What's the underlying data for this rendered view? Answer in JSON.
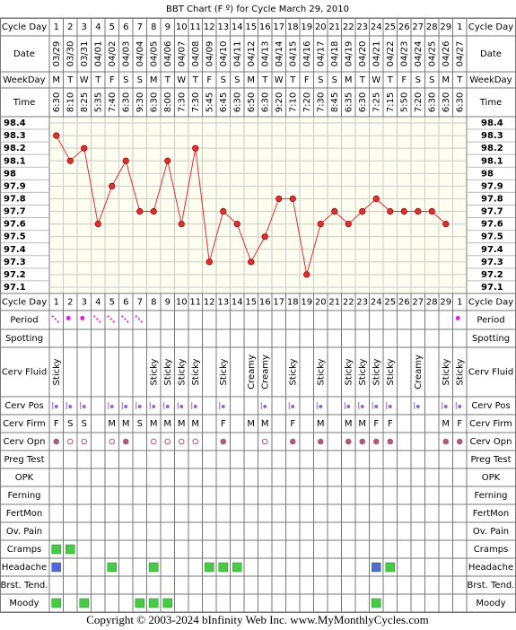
{
  "title": "BBT Chart (F º) for Cycle March 29, 2010",
  "cycle_day_label": "Cycle Day",
  "date_label": "Date",
  "dates": [
    "03/29",
    "03/30",
    "03/31",
    "04/01",
    "04/02",
    "04/03",
    "04/04",
    "04/05",
    "04/06",
    "04/07",
    "04/08",
    "04/09",
    "04/10",
    "04/11",
    "04/12",
    "04/13",
    "04/14",
    "04/15",
    "04/16",
    "04/17",
    "04/18",
    "04/19",
    "04/20",
    "04/21",
    "04/22",
    "04/23",
    "04/24",
    "04/25",
    "04/26",
    "04/27"
  ],
  "weekday_label": "WeekDay",
  "weekdays": [
    "M",
    "T",
    "W",
    "T",
    "F",
    "S",
    "S",
    "M",
    "T",
    "W",
    "T",
    "F",
    "S",
    "S",
    "M",
    "T",
    "W",
    "T",
    "F",
    "S",
    "S",
    "M",
    "T",
    "W",
    "T",
    "F",
    "S",
    "S",
    "M",
    "T"
  ],
  "time_label": "Time",
  "times": [
    "6:30",
    "8:10",
    "8:25",
    "5:35",
    "7:40",
    "6:30",
    "9:30",
    "6:30",
    "8:00",
    "7:30",
    "7:30",
    "5:45",
    "6:45",
    "6:30",
    "6:50",
    "6:30",
    "9:20",
    "7:10",
    "7:20",
    "7:30",
    "8:45",
    "6:35",
    "6:30",
    "7:25",
    "7:15",
    "5:50",
    "7:20",
    "6:30",
    "6:30",
    "6:30"
  ],
  "chart_data": {
    "type": "line",
    "categories": [
      1,
      2,
      3,
      4,
      5,
      6,
      7,
      8,
      9,
      10,
      11,
      12,
      13,
      14,
      15,
      16,
      17,
      18,
      19,
      20,
      21,
      22,
      23,
      24,
      25,
      26,
      27,
      28,
      29,
      1
    ],
    "series": [
      {
        "color": "#e03030",
        "values": [
          98.3,
          98.1,
          98.2,
          97.6,
          97.9,
          98.1,
          97.7,
          97.7,
          98.1,
          97.6,
          98.2,
          97.3,
          97.7,
          97.6,
          97.3,
          97.5,
          97.8,
          97.8,
          97.2,
          97.6,
          97.7,
          97.6,
          97.7,
          97.8,
          97.7,
          97.7,
          97.7,
          97.7,
          97.6,
          null
        ]
      }
    ],
    "ylim": [
      97.05,
      98.45
    ],
    "yticks": [
      98.4,
      98.3,
      98.2,
      98.1,
      98.0,
      97.9,
      97.8,
      97.7,
      97.6,
      97.5,
      97.4,
      97.3,
      97.2,
      97.1
    ],
    "grid": true
  },
  "observations": [
    {
      "label": "Period",
      "kind": "period",
      "color": "#e020e0",
      "values": [
        1,
        2,
        2,
        1,
        1,
        1,
        1,
        null,
        null,
        null,
        null,
        null,
        null,
        null,
        null,
        null,
        null,
        null,
        null,
        null,
        null,
        null,
        null,
        null,
        null,
        null,
        null,
        null,
        null,
        2
      ]
    },
    {
      "label": "Spotting"
    },
    {
      "label": "Cerv Fluid",
      "kind": "text",
      "values": [
        "Sticky",
        null,
        null,
        null,
        null,
        null,
        null,
        "Sticky",
        "Sticky",
        "Sticky",
        "Sticky",
        null,
        "Sticky",
        null,
        "Creamy",
        "Creamy",
        null,
        "Sticky",
        null,
        "Sticky",
        null,
        "Sticky",
        "Sticky",
        "Sticky",
        "Sticky",
        null,
        "Creamy",
        null,
        "Sticky",
        "Sticky"
      ]
    },
    {
      "label": "Cerv Pos",
      "kind": "pos",
      "color": "#9966cc",
      "values": [
        1,
        1,
        1,
        null,
        1,
        1,
        1,
        1,
        1,
        1,
        1,
        null,
        1,
        null,
        null,
        1,
        null,
        1,
        null,
        1,
        null,
        1,
        1,
        1,
        1,
        null,
        1,
        null,
        1,
        1
      ]
    },
    {
      "label": "Cerv Firm",
      "kind": "letter",
      "color": "#9966cc",
      "values": [
        "F",
        "S",
        "S",
        null,
        "M",
        "M",
        "S",
        "M",
        "M",
        "M",
        "M",
        null,
        "F",
        null,
        "M",
        "M",
        null,
        "F",
        null,
        "M",
        null,
        "M",
        "M",
        "F",
        "F",
        null,
        null,
        null,
        "M",
        "F"
      ]
    },
    {
      "label": "Cerv Opn",
      "kind": "open",
      "color": "#b05878",
      "values": [
        1,
        0,
        0,
        null,
        0,
        1,
        null,
        0,
        0,
        0,
        0,
        null,
        1,
        null,
        null,
        0,
        null,
        1,
        null,
        1,
        null,
        1,
        1,
        1,
        1,
        null,
        null,
        null,
        1,
        1
      ]
    },
    {
      "label": "Preg Test"
    },
    {
      "label": "OPK"
    },
    {
      "label": "Ferning"
    },
    {
      "label": "FertMon"
    },
    {
      "label": "Ov. Pain"
    },
    {
      "label": "Cramps",
      "kind": "box",
      "values": [
        "#44cc44",
        "#44cc44",
        null,
        null,
        null,
        null,
        null,
        null,
        null,
        null,
        null,
        null,
        null,
        null,
        null,
        null,
        null,
        null,
        null,
        null,
        null,
        null,
        null,
        null,
        null,
        null,
        null,
        null,
        null,
        null
      ]
    },
    {
      "label": "Headache",
      "kind": "box",
      "values": [
        "#5566dd",
        null,
        null,
        null,
        "#44cc44",
        null,
        null,
        "#44cc44",
        null,
        null,
        null,
        "#44cc44",
        "#44cc44",
        "#44cc44",
        null,
        null,
        null,
        null,
        null,
        null,
        null,
        null,
        null,
        "#5566dd",
        "#44cc44",
        null,
        null,
        null,
        null,
        null
      ]
    },
    {
      "label": "Brst. Tend."
    },
    {
      "label": "Moody",
      "kind": "box",
      "values": [
        "#44cc44",
        null,
        "#44cc44",
        null,
        null,
        null,
        "#44cc44",
        "#44cc44",
        "#44cc44",
        null,
        null,
        null,
        null,
        null,
        null,
        null,
        null,
        null,
        null,
        null,
        null,
        null,
        null,
        "#44cc44",
        null,
        null,
        null,
        null,
        null,
        null
      ]
    }
  ],
  "footer": "Copyright © 2003-2024 bInfinity Web Inc.     www.MyMonthlyCycles.com"
}
